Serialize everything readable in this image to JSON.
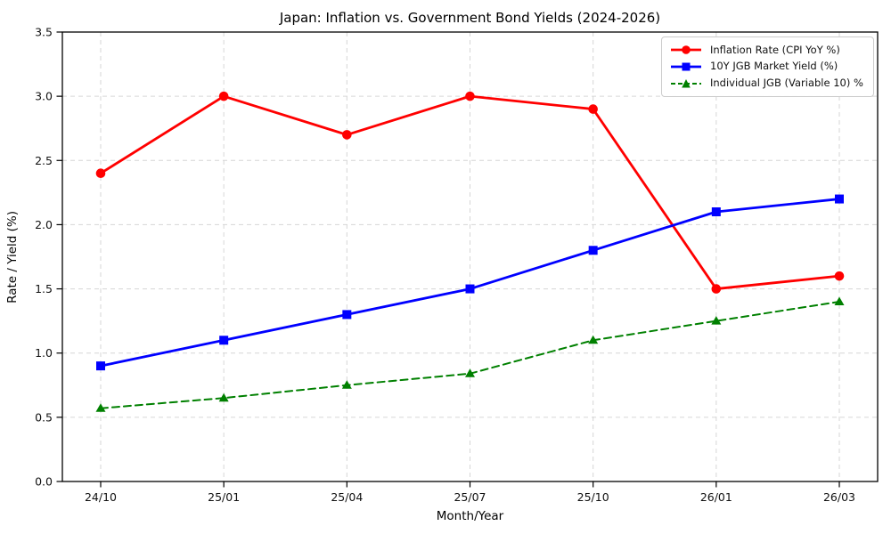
{
  "chart_data": {
    "type": "line",
    "title": "Japan: Inflation vs. Government Bond Yields (2024-2026)",
    "xlabel": "Month/Year",
    "ylabel": "Rate / Yield (%)",
    "categories": [
      "24/10",
      "25/01",
      "25/04",
      "25/07",
      "25/10",
      "26/01",
      "26/03"
    ],
    "ylim": [
      0.0,
      3.5
    ],
    "yticks": [
      0.0,
      0.5,
      1.0,
      1.5,
      2.0,
      2.5,
      3.0,
      3.5
    ],
    "grid": true,
    "grid_style": "dashed",
    "legend_position": "upper right",
    "series": [
      {
        "name": "Inflation Rate (CPI YoY %)",
        "color": "#ff0000",
        "line_style": "solid",
        "marker": "circle",
        "values": [
          2.4,
          3.0,
          2.7,
          3.0,
          2.9,
          1.5,
          1.6
        ]
      },
      {
        "name": "10Y JGB Market Yield (%)",
        "color": "#0000ff",
        "line_style": "solid",
        "marker": "square",
        "values": [
          0.9,
          1.1,
          1.3,
          1.5,
          1.8,
          2.1,
          2.2
        ]
      },
      {
        "name": "Individual JGB (Variable 10) %",
        "color": "#008000",
        "line_style": "dashed",
        "marker": "triangle",
        "values": [
          0.57,
          0.65,
          0.75,
          0.84,
          1.1,
          1.25,
          1.4
        ]
      }
    ]
  }
}
